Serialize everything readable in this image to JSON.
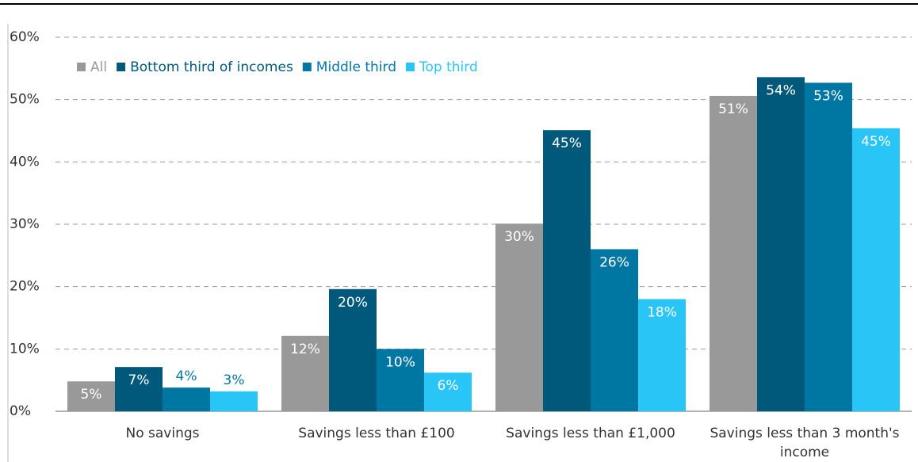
{
  "chart_data": {
    "type": "bar",
    "categories": [
      "No savings",
      "Savings less than £100",
      "Savings less than £1,000",
      "Savings less than 3 month's income"
    ],
    "series": [
      {
        "name": "All",
        "color": "#999999",
        "values": [
          4.8,
          12.1,
          30.1,
          50.6
        ],
        "value_labels": [
          "5%",
          "12%",
          "30%",
          "51%"
        ]
      },
      {
        "name": "Bottom third of incomes",
        "color": "#00587a",
        "values": [
          7.1,
          19.6,
          45.1,
          53.6
        ],
        "value_labels": [
          "7%",
          "20%",
          "45%",
          "54%"
        ]
      },
      {
        "name": "Middle third",
        "color": "#0076a3",
        "values": [
          3.8,
          10.0,
          26.0,
          52.7
        ],
        "value_labels": [
          "4%",
          "10%",
          "26%",
          "53%"
        ]
      },
      {
        "name": "Top third",
        "color": "#29c5f6",
        "values": [
          3.2,
          6.2,
          18.0,
          45.4
        ],
        "value_labels": [
          "3%",
          "6%",
          "18%",
          "45%"
        ]
      }
    ],
    "ylim": [
      0,
      60
    ],
    "yticks": [
      {
        "value": 0,
        "label": "0%"
      },
      {
        "value": 10,
        "label": "10%"
      },
      {
        "value": 20,
        "label": "20%"
      },
      {
        "value": 30,
        "label": "30%"
      },
      {
        "value": 40,
        "label": "40%"
      },
      {
        "value": 50,
        "label": "50%"
      },
      {
        "value": 60,
        "label": "60%"
      }
    ],
    "grid": true,
    "legend": "top-left"
  }
}
